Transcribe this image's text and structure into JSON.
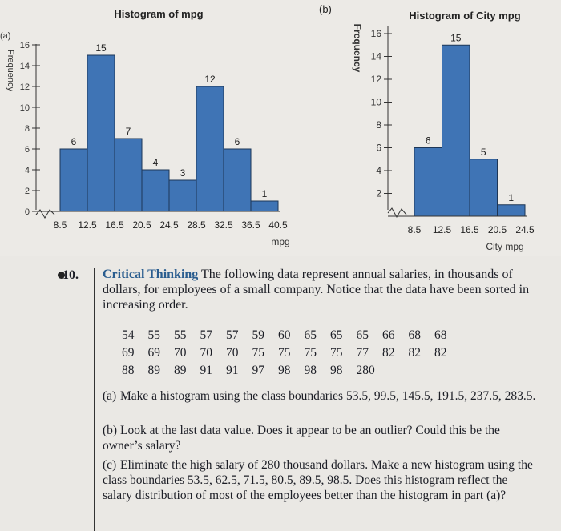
{
  "chart_data": [
    {
      "type": "bar",
      "panel_label": "(a)",
      "title": "Histogram of mpg",
      "xlabel": "mpg",
      "ylabel": "Frequency",
      "class_boundaries": [
        "8.5",
        "12.5",
        "16.5",
        "20.5",
        "24.5",
        "28.5",
        "32.5",
        "36.5",
        "40.5"
      ],
      "values": [
        6,
        15,
        7,
        4,
        3,
        12,
        6,
        1
      ],
      "yticks": [
        0,
        2,
        4,
        6,
        8,
        10,
        12,
        14,
        16
      ],
      "ylim": [
        0,
        16
      ],
      "bar_color": "#3f74b5"
    },
    {
      "type": "bar",
      "panel_label": "(b)",
      "title": "Histogram of City mpg",
      "xlabel": "City mpg",
      "ylabel": "Frequency",
      "class_boundaries": [
        "8.5",
        "12.5",
        "16.5",
        "20.5",
        "24.5"
      ],
      "values": [
        6,
        15,
        5,
        1
      ],
      "yticks": [
        2,
        4,
        6,
        8,
        10,
        12,
        14,
        16
      ],
      "ylim": [
        0,
        16
      ],
      "bar_color": "#3f74b5"
    }
  ],
  "problem": {
    "number": "10.",
    "heading": "Critical Thinking",
    "intro": "The following data represent annual salaries, in thousands of dollars, for employees of a small company. Notice that the data have been sorted in increasing order.",
    "data_rows": [
      [
        "54",
        "55",
        "55",
        "57",
        "57",
        "59",
        "60",
        "65",
        "65",
        "65",
        "66",
        "68",
        "68"
      ],
      [
        "69",
        "69",
        "70",
        "70",
        "70",
        "75",
        "75",
        "75",
        "75",
        "77",
        "82",
        "82",
        "82"
      ],
      [
        "88",
        "89",
        "89",
        "91",
        "91",
        "97",
        "98",
        "98",
        "98",
        "280"
      ]
    ],
    "parts": [
      {
        "label": "(a)",
        "text": "Make a histogram using the class boundaries 53.5, 99.5, 145.5, 191.5, 237.5, 283.5."
      },
      {
        "label": "(b)",
        "text": "Look at the last data value. Does it appear to be an outlier? Could this be the owner’s salary?"
      },
      {
        "label": "(c)",
        "text": "Eliminate the high salary of 280 thousand dollars. Make a new histogram using the class boundaries 53.5, 62.5, 71.5, 80.5, 89.5, 98.5. Does this histogram reflect the salary distribution of most of the employees better than the histogram in part (a)?"
      }
    ]
  }
}
